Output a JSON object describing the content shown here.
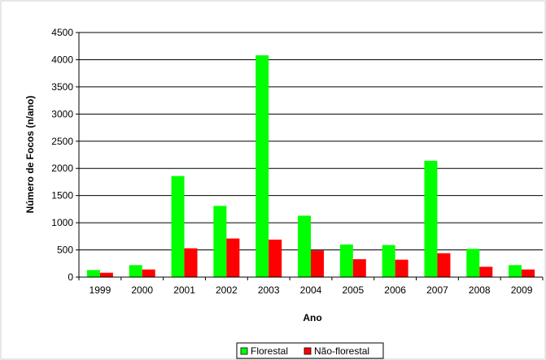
{
  "chart_data": {
    "type": "bar",
    "title": "",
    "xlabel": "Ano",
    "ylabel": "Número de Focos (n/ano)",
    "ylim": [
      0,
      4500
    ],
    "yticks": [
      0,
      500,
      1000,
      1500,
      2000,
      2500,
      3000,
      3500,
      4000,
      4500
    ],
    "ytick_labels": [
      "0",
      "500",
      "1000",
      "1500",
      "2000",
      "2500",
      "3000",
      "3500",
      "4000",
      "4500"
    ],
    "categories": [
      "1999",
      "2000",
      "2001",
      "2002",
      "2003",
      "2004",
      "2005",
      "2006",
      "2007",
      "2008",
      "2009"
    ],
    "grid": true,
    "legend_position": "bottom",
    "series": [
      {
        "name": "Florestal",
        "color": "#00ff00",
        "values": [
          130,
          220,
          1860,
          1310,
          4080,
          1130,
          600,
          590,
          2140,
          520,
          220
        ]
      },
      {
        "name": "Não-florestal",
        "color": "#ff0000",
        "values": [
          80,
          140,
          530,
          710,
          690,
          490,
          330,
          320,
          440,
          190,
          140
        ]
      }
    ]
  }
}
